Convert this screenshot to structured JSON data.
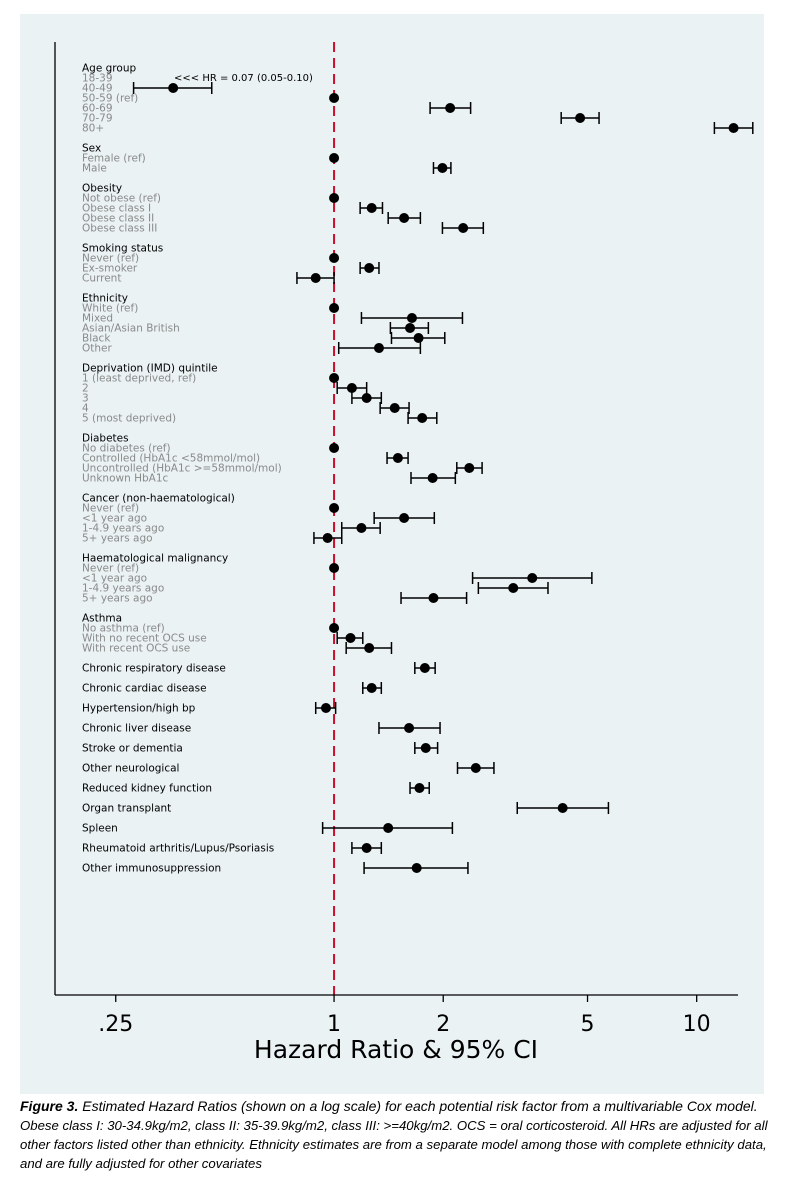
{
  "chart_data": {
    "type": "forest",
    "scale": "log",
    "xlabel": "Hazard Ratio & 95% CI",
    "xlim": [
      0.17,
      13
    ],
    "xticks": [
      0.25,
      1,
      2,
      5,
      10
    ],
    "xtick_labels": [
      ".25",
      "1",
      "2",
      "5",
      "10"
    ],
    "reference_line": 1,
    "reference_color": "#c8102e",
    "grid": false,
    "annotation": "<<< HR = 0.07 (0.05-0.10)",
    "groups": [
      {
        "title": "Age group",
        "rows": [
          {
            "label": "18-39",
            "hr": null
          },
          {
            "label": "40-49",
            "hr": 0.36,
            "lo": 0.28,
            "hi": 0.46
          },
          {
            "label": "50-59 (ref)",
            "hr": 1
          },
          {
            "label": "60-69",
            "hr": 2.09,
            "lo": 1.84,
            "hi": 2.38
          },
          {
            "label": "70-79",
            "hr": 4.77,
            "lo": 4.23,
            "hi": 5.38
          },
          {
            "label": "80+",
            "hr": 12.64,
            "lo": 11.19,
            "hi": 14.28
          }
        ]
      },
      {
        "title": "Sex",
        "rows": [
          {
            "label": "Female (ref)",
            "hr": 1
          },
          {
            "label": "Male",
            "hr": 1.99,
            "lo": 1.88,
            "hi": 2.1
          }
        ]
      },
      {
        "title": "Obesity",
        "rows": [
          {
            "label": "Not obese (ref)",
            "hr": 1
          },
          {
            "label": "Obese class I",
            "hr": 1.27,
            "lo": 1.18,
            "hi": 1.36
          },
          {
            "label": "Obese class II",
            "hr": 1.56,
            "lo": 1.41,
            "hi": 1.73
          },
          {
            "label": "Obese class III",
            "hr": 2.27,
            "lo": 1.99,
            "hi": 2.58
          }
        ]
      },
      {
        "title": "Smoking status",
        "rows": [
          {
            "label": "Never (ref)",
            "hr": 1
          },
          {
            "label": "Ex-smoker",
            "hr": 1.25,
            "lo": 1.18,
            "hi": 1.33
          },
          {
            "label": "Current",
            "hr": 0.89,
            "lo": 0.79,
            "hi": 1.0
          }
        ]
      },
      {
        "title": "Ethnicity",
        "rows": [
          {
            "label": "White (ref)",
            "hr": 1
          },
          {
            "label": "Mixed",
            "hr": 1.64,
            "lo": 1.19,
            "hi": 2.26
          },
          {
            "label": "Asian/Asian British",
            "hr": 1.62,
            "lo": 1.43,
            "hi": 1.82
          },
          {
            "label": "Black",
            "hr": 1.71,
            "lo": 1.44,
            "hi": 2.02
          },
          {
            "label": "Other",
            "hr": 1.33,
            "lo": 1.03,
            "hi": 1.73
          }
        ]
      },
      {
        "title": "Deprivation (IMD) quintile",
        "rows": [
          {
            "label": "1 (least deprived, ref)",
            "hr": 1
          },
          {
            "label": "2",
            "hr": 1.12,
            "lo": 1.02,
            "hi": 1.23
          },
          {
            "label": "3",
            "hr": 1.23,
            "lo": 1.12,
            "hi": 1.35
          },
          {
            "label": "4",
            "hr": 1.47,
            "lo": 1.34,
            "hi": 1.61
          },
          {
            "label": "5 (most deprived)",
            "hr": 1.75,
            "lo": 1.6,
            "hi": 1.92
          }
        ]
      },
      {
        "title": "Diabetes",
        "rows": [
          {
            "label": "No diabetes (ref)",
            "hr": 1
          },
          {
            "label": "Controlled (HbA1c <58mmol/mol)",
            "hr": 1.5,
            "lo": 1.4,
            "hi": 1.6
          },
          {
            "label": "Uncontrolled (HbA1c >=58mmol/mol)",
            "hr": 2.36,
            "lo": 2.18,
            "hi": 2.56
          },
          {
            "label": "Unknown HbA1c",
            "hr": 1.87,
            "lo": 1.63,
            "hi": 2.16
          }
        ]
      },
      {
        "title": "Cancer (non-haematological)",
        "rows": [
          {
            "label": "Never (ref)",
            "hr": 1
          },
          {
            "label": "<1 year ago",
            "hr": 1.56,
            "lo": 1.29,
            "hi": 1.89
          },
          {
            "label": "1-4.9 years ago",
            "hr": 1.19,
            "lo": 1.05,
            "hi": 1.34
          },
          {
            "label": "5+ years ago",
            "hr": 0.96,
            "lo": 0.88,
            "hi": 1.05
          }
        ]
      },
      {
        "title": "Haematological malignancy",
        "rows": [
          {
            "label": "Never (ref)",
            "hr": 1
          },
          {
            "label": "<1 year ago",
            "hr": 3.52,
            "lo": 2.41,
            "hi": 5.14
          },
          {
            "label": "1-4.9 years ago",
            "hr": 3.12,
            "lo": 2.5,
            "hi": 3.89
          },
          {
            "label": "5+ years ago",
            "hr": 1.88,
            "lo": 1.53,
            "hi": 2.32
          }
        ]
      },
      {
        "title": "Asthma",
        "rows": [
          {
            "label": "No asthma (ref)",
            "hr": 1
          },
          {
            "label": "With no recent OCS use",
            "hr": 1.11,
            "lo": 1.02,
            "hi": 1.2
          },
          {
            "label": "With recent OCS use",
            "hr": 1.25,
            "lo": 1.08,
            "hi": 1.44
          }
        ]
      },
      {
        "title": "",
        "rows": [
          {
            "label": "Chronic respiratory disease",
            "hr": 1.78,
            "lo": 1.67,
            "hi": 1.9
          }
        ]
      },
      {
        "title": "",
        "rows": [
          {
            "label": "Chronic cardiac disease",
            "hr": 1.27,
            "lo": 1.2,
            "hi": 1.35
          }
        ]
      },
      {
        "title": "",
        "rows": [
          {
            "label": "Hypertension/high bp",
            "hr": 0.95,
            "lo": 0.89,
            "hi": 1.01
          }
        ]
      },
      {
        "title": "",
        "rows": [
          {
            "label": "Chronic liver disease",
            "hr": 1.61,
            "lo": 1.33,
            "hi": 1.96
          }
        ]
      },
      {
        "title": "",
        "rows": [
          {
            "label": "Stroke or dementia",
            "hr": 1.79,
            "lo": 1.67,
            "hi": 1.93
          }
        ]
      },
      {
        "title": "",
        "rows": [
          {
            "label": "Other neurological",
            "hr": 2.46,
            "lo": 2.19,
            "hi": 2.76
          }
        ]
      },
      {
        "title": "",
        "rows": [
          {
            "label": "Reduced kidney function",
            "hr": 1.72,
            "lo": 1.62,
            "hi": 1.83
          }
        ]
      },
      {
        "title": "",
        "rows": [
          {
            "label": "Organ transplant",
            "hr": 4.27,
            "lo": 3.2,
            "hi": 5.71
          }
        ]
      },
      {
        "title": "",
        "rows": [
          {
            "label": "Spleen",
            "hr": 1.41,
            "lo": 0.93,
            "hi": 2.12
          }
        ]
      },
      {
        "title": "",
        "rows": [
          {
            "label": "Rheumatoid arthritis/Lupus/Psoriasis",
            "hr": 1.23,
            "lo": 1.12,
            "hi": 1.35
          }
        ]
      },
      {
        "title": "",
        "rows": [
          {
            "label": "Other immunosuppression",
            "hr": 1.69,
            "lo": 1.21,
            "hi": 2.34
          }
        ]
      }
    ]
  },
  "caption": {
    "figure_label": "Figure 3.",
    "main_text": " Estimated Hazard Ratios (shown on a log scale) for each potential risk factor from a multivariable Cox model.",
    "note_text": " Obese class I: 30-34.9kg/m2, class II: 35-39.9kg/m2, class III: >=40kg/m2. OCS = oral corticosteroid. All HRs are adjusted for all other factors listed other than ethnicity. Ethnicity estimates are from a separate model among those with complete ethnicity data, and are fully adjusted for other covariates"
  }
}
